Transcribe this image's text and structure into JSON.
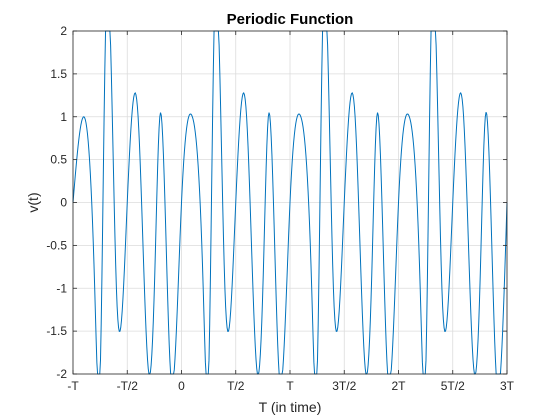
{
  "chart_data": {
    "type": "line",
    "title": "Periodic Function",
    "xlabel": "T (in time)",
    "ylabel": "v(t)",
    "x_unit": "T",
    "xlim": [
      -1,
      3
    ],
    "ylim": [
      -2,
      2
    ],
    "grid": true,
    "xticks": [
      {
        "value": -1,
        "label": "-T"
      },
      {
        "value": -0.5,
        "label": "-T/2"
      },
      {
        "value": 0,
        "label": "0"
      },
      {
        "value": 0.5,
        "label": "T/2"
      },
      {
        "value": 1,
        "label": "T"
      },
      {
        "value": 1.5,
        "label": "3T/2"
      },
      {
        "value": 2,
        "label": "2T"
      },
      {
        "value": 2.5,
        "label": "5T/2"
      },
      {
        "value": 3,
        "label": "3T"
      }
    ],
    "yticks": [
      {
        "value": -2,
        "label": "-2"
      },
      {
        "value": -1.5,
        "label": "-1.5"
      },
      {
        "value": -1,
        "label": "-1"
      },
      {
        "value": -0.5,
        "label": "-0.5"
      },
      {
        "value": 0,
        "label": "0"
      },
      {
        "value": 0.5,
        "label": "0.5"
      },
      {
        "value": 1,
        "label": "1"
      },
      {
        "value": 1.5,
        "label": "1.5"
      },
      {
        "value": 2,
        "label": "2"
      }
    ],
    "series": [
      {
        "color": "#0072BD",
        "x": [
          -1,
          -0.9,
          -0.8,
          -0.75,
          -0.7,
          -0.6,
          -0.5,
          -0.4,
          -0.3,
          -0.25,
          -0.2,
          -0.1,
          0,
          0.1,
          0.2,
          0.25,
          0.3,
          0.4,
          0.5,
          0.6,
          0.7,
          0.75,
          0.8,
          0.9,
          1,
          1.1,
          1.2,
          1.25,
          1.3,
          1.4,
          1.5,
          1.6,
          1.7,
          1.75,
          1.8,
          1.9,
          2,
          2.1,
          2.2,
          2.25,
          2.3,
          2.4,
          2.5,
          2.6,
          2.7,
          2.75,
          2.8,
          2.9,
          3
        ],
        "y": [
          0,
          1,
          -1,
          -2,
          2,
          -1,
          0,
          1,
          -2,
          -1,
          1,
          -2,
          0,
          1,
          -1,
          -2,
          2,
          -1,
          0,
          1,
          -2,
          -1,
          1,
          -2,
          0,
          1,
          -1,
          -2,
          2,
          -1,
          0,
          1,
          -2,
          -1,
          1,
          -2,
          0,
          1,
          -1,
          -2,
          2,
          -1,
          0,
          1,
          -2,
          -1,
          1,
          -2,
          0
        ]
      }
    ]
  }
}
